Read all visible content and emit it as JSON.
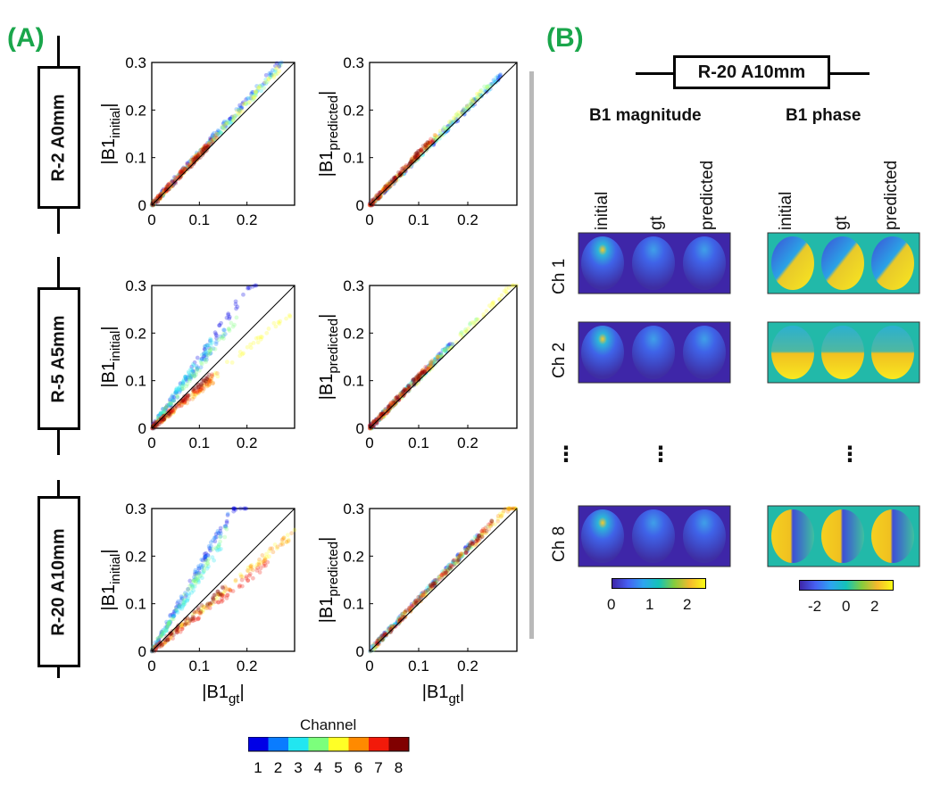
{
  "panel_a": {
    "label": "(A)",
    "rows": [
      "R-2 A0mm",
      "R-5 A5mm",
      "R-20 A10mm"
    ],
    "y_label_initial": "|B1",
    "y_sub_initial": "initial",
    "y_label_predicted": "|B1",
    "y_sub_predicted": "predicted",
    "x_label": "|B1",
    "x_sub": "gt",
    "bar": "|",
    "y_ticks": [
      "0.3",
      "0.2",
      "0.1",
      "0"
    ],
    "x_ticks": [
      "0",
      "0.1",
      "0.2"
    ]
  },
  "legend": {
    "title": "Channel",
    "labels": [
      "1",
      "2",
      "3",
      "4",
      "5",
      "6",
      "7",
      "8"
    ],
    "colors": [
      "#0000e6",
      "#0a7cff",
      "#22e6f0",
      "#7cff7c",
      "#ffff26",
      "#ff8a00",
      "#f21a0a",
      "#800000"
    ]
  },
  "panel_b": {
    "label": "(B)",
    "title": "R-20 A10mm",
    "magnitude_header": "B1 magnitude",
    "phase_header": "B1 phase",
    "columns": [
      "initial",
      "gt",
      "predicted"
    ],
    "channels": [
      "Ch 1",
      "Ch 2",
      "Ch 8"
    ],
    "ellipsis": "⋮",
    "mag_colorbar_ticks": [
      "0",
      "1",
      "2"
    ],
    "phase_colorbar_ticks": [
      "-2",
      "0",
      "2"
    ]
  },
  "chart_data": [
    {
      "type": "scatter",
      "title": "R-2 A0mm initial",
      "xlabel": "|B1gt|",
      "ylabel": "|B1initial|",
      "xlim": [
        0,
        0.3
      ],
      "ylim": [
        0,
        0.3
      ],
      "spread": [
        0.03,
        0.03,
        0.02,
        0.02,
        0.02,
        0.01,
        0.01,
        0.005
      ],
      "extent": [
        0.28,
        0.28,
        0.27,
        0.28,
        0.27,
        0.14,
        0.13,
        0.12
      ]
    },
    {
      "type": "scatter",
      "title": "R-2 A0mm predicted",
      "xlabel": "|B1gt|",
      "ylabel": "|B1predicted|",
      "xlim": [
        0,
        0.3
      ],
      "ylim": [
        0,
        0.3
      ],
      "spread": [
        0.005,
        0.005,
        0.005,
        0.01,
        0.01,
        0.01,
        0.01,
        0.01
      ],
      "extent": [
        0.27,
        0.27,
        0.26,
        0.25,
        0.24,
        0.14,
        0.13,
        0.12
      ]
    },
    {
      "type": "scatter",
      "title": "R-5 A5mm initial",
      "xlabel": "|B1gt|",
      "ylabel": "|B1initial|",
      "xlim": [
        0,
        0.3
      ],
      "ylim": [
        0,
        0.3
      ],
      "spread": [
        0.1,
        0.05,
        0.06,
        0.05,
        -0.05,
        -0.03,
        -0.02,
        -0.01
      ],
      "extent": [
        0.22,
        0.16,
        0.13,
        0.18,
        0.3,
        0.14,
        0.13,
        0.12
      ]
    },
    {
      "type": "scatter",
      "title": "R-5 A5mm predicted",
      "xlabel": "|B1gt|",
      "ylabel": "|B1predicted|",
      "xlim": [
        0,
        0.3
      ],
      "ylim": [
        0,
        0.3
      ],
      "spread": [
        0.01,
        0.01,
        0.01,
        0.01,
        0.01,
        0.01,
        0.01,
        0.01
      ],
      "extent": [
        0.17,
        0.16,
        0.16,
        0.22,
        0.3,
        0.14,
        0.13,
        0.12
      ]
    },
    {
      "type": "scatter",
      "title": "R-20 A10mm initial",
      "xlabel": "|B1gt|",
      "ylabel": "|B1initial|",
      "xlim": [
        0,
        0.3
      ],
      "ylim": [
        0,
        0.3
      ],
      "spread": [
        0.15,
        0.12,
        0.08,
        0.1,
        -0.05,
        -0.05,
        -0.06,
        -0.02
      ],
      "extent": [
        0.2,
        0.16,
        0.15,
        0.16,
        0.3,
        0.3,
        0.25,
        0.15
      ]
    },
    {
      "type": "scatter",
      "title": "R-20 A10mm predicted",
      "xlabel": "|B1gt|",
      "ylabel": "|B1predicted|",
      "xlim": [
        0,
        0.3
      ],
      "ylim": [
        0,
        0.3
      ],
      "spread": [
        0.02,
        0.02,
        0.02,
        0.02,
        0.02,
        0.02,
        0.02,
        0.02
      ],
      "extent": [
        0.22,
        0.22,
        0.22,
        0.25,
        0.3,
        0.3,
        0.25,
        0.25
      ]
    }
  ]
}
